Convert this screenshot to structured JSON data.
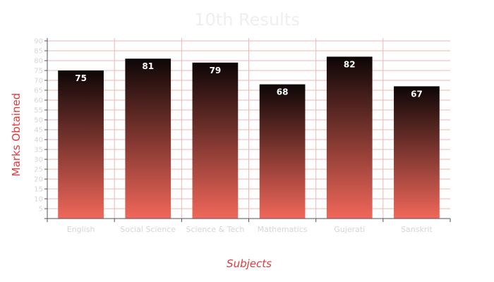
{
  "chart_data": {
    "type": "bar",
    "title": "10th Results",
    "xlabel": "Subjects",
    "ylabel": "Marks Obtained",
    "categories": [
      "English",
      "Social Science",
      "Science & Tech",
      "Mathematics",
      "Gujerati",
      "Sanskrit"
    ],
    "values": [
      75,
      81,
      79,
      68,
      82,
      67
    ],
    "ylim": [
      0,
      90
    ],
    "yticks": [
      5,
      10,
      15,
      20,
      25,
      30,
      35,
      40,
      45,
      50,
      55,
      60,
      65,
      70,
      75,
      80,
      85,
      90
    ],
    "grid": true,
    "legend": "none",
    "colors": {
      "bar_top": "#0d0606",
      "bar_bottom": "#f0675a",
      "grid": "#efb7b7",
      "axis": "#555555",
      "label": "#e03a3a",
      "title": "#efefef",
      "tick": "#d6d6d6",
      "data_label": "#ffffff"
    }
  }
}
